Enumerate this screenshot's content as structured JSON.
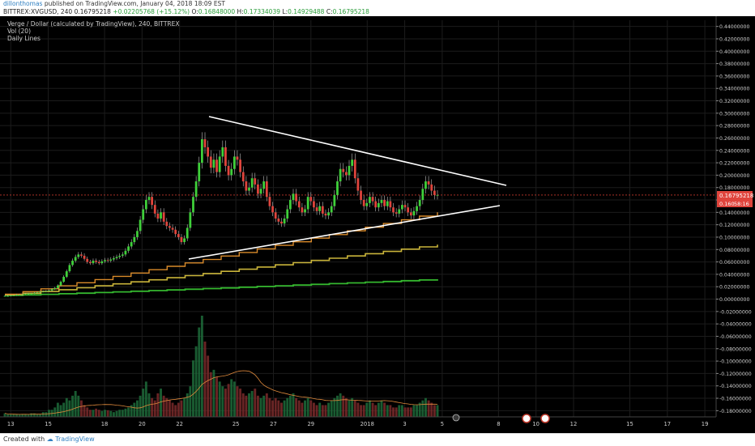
{
  "header": {
    "user": "dillonthomas",
    "published": "published on TradingView.com, January 04, 2018 18:09 EST",
    "symbol": "BITTREX:XVGUSD, 240",
    "last": "0.16795218",
    "change": "+0.02205768 (+15.12%)",
    "o_label": "O:",
    "o": "0.16848000",
    "h_label": "H:",
    "h": "0.17334039",
    "l_label": "L:",
    "l": "0.14929488",
    "c_label": "C:",
    "c": "0.16795218"
  },
  "legend": {
    "title": "Verge / Dollar (calculated by TradingView), 240, BITTREX",
    "vol": "Vol (20)",
    "daily": "Daily Lines"
  },
  "footer": {
    "created": "Created with",
    "brand": "TradingView"
  },
  "colors": {
    "up": "#3fd13a",
    "down": "#e0443c",
    "bg": "#000000",
    "grid": "#1c1c1c",
    "orange": "#d98a2a",
    "yellow": "#c9b43a",
    "green": "#35b82f",
    "trend": "#ffffff"
  },
  "chart_data": {
    "type": "candlestick",
    "y_ticks": [
      "0.44000000",
      "0.42000000",
      "0.40000000",
      "0.38000000",
      "0.36000000",
      "0.34000000",
      "0.32000000",
      "0.30000000",
      "0.28000000",
      "0.26000000",
      "0.24000000",
      "0.22000000",
      "0.20000000",
      "0.18000000",
      "0.16000000",
      "0.14000000",
      "0.12000000",
      "0.10000000",
      "0.08000000",
      "0.06000000",
      "0.04000000",
      "0.02000000",
      "0.00000000",
      "-0.02000000",
      "-0.04000000",
      "-0.06000000",
      "-0.08000000",
      "-0.10000000",
      "-0.12000000",
      "-0.14000000",
      "-0.16000000",
      "-0.18000000"
    ],
    "x_ticks": [
      "13",
      "15",
      "18",
      "20",
      "22",
      "25",
      "27",
      "29",
      "2018",
      "3",
      "5",
      "8",
      "10",
      "12",
      "15",
      "17",
      "19"
    ],
    "price_label": "0.16795218",
    "price_label_2": "0.160",
    "countdown": "58:16",
    "ylim": [
      -0.19,
      0.45
    ],
    "closes": [
      0.005,
      0.005,
      0.006,
      0.006,
      0.007,
      0.007,
      0.008,
      0.008,
      0.009,
      0.009,
      0.01,
      0.011,
      0.012,
      0.012,
      0.013,
      0.014,
      0.016,
      0.018,
      0.022,
      0.028,
      0.036,
      0.045,
      0.055,
      0.062,
      0.068,
      0.072,
      0.07,
      0.065,
      0.06,
      0.058,
      0.062,
      0.06,
      0.058,
      0.061,
      0.063,
      0.062,
      0.064,
      0.066,
      0.068,
      0.07,
      0.072,
      0.078,
      0.085,
      0.092,
      0.1,
      0.11,
      0.128,
      0.145,
      0.16,
      0.165,
      0.152,
      0.138,
      0.13,
      0.14,
      0.125,
      0.118,
      0.115,
      0.112,
      0.105,
      0.1,
      0.092,
      0.098,
      0.115,
      0.14,
      0.165,
      0.19,
      0.22,
      0.258,
      0.245,
      0.23,
      0.212,
      0.225,
      0.205,
      0.23,
      0.245,
      0.215,
      0.2,
      0.21,
      0.23,
      0.225,
      0.205,
      0.19,
      0.175,
      0.18,
      0.195,
      0.185,
      0.17,
      0.178,
      0.19,
      0.165,
      0.15,
      0.14,
      0.13,
      0.125,
      0.122,
      0.13,
      0.145,
      0.16,
      0.17,
      0.158,
      0.148,
      0.14,
      0.145,
      0.165,
      0.158,
      0.148,
      0.142,
      0.15,
      0.138,
      0.135,
      0.14,
      0.15,
      0.168,
      0.19,
      0.21,
      0.205,
      0.2,
      0.215,
      0.225,
      0.195,
      0.175,
      0.16,
      0.15,
      0.155,
      0.165,
      0.158,
      0.148,
      0.155,
      0.16,
      0.15,
      0.158,
      0.148,
      0.14,
      0.138,
      0.145,
      0.152,
      0.148,
      0.14,
      0.135,
      0.142,
      0.15,
      0.16,
      0.178,
      0.19,
      0.185,
      0.175,
      0.168,
      0.168
    ],
    "volumes": [
      0.15,
      0.1,
      0.1,
      0.1,
      0.1,
      0.1,
      0.12,
      0.1,
      0.1,
      0.15,
      0.15,
      0.1,
      0.1,
      0.2,
      0.2,
      0.3,
      0.3,
      0.4,
      0.6,
      0.5,
      0.6,
      0.8,
      0.7,
      0.9,
      1.1,
      0.9,
      0.7,
      0.5,
      0.4,
      0.3,
      0.3,
      0.35,
      0.3,
      0.25,
      0.3,
      0.28,
      0.25,
      0.2,
      0.25,
      0.3,
      0.3,
      0.35,
      0.4,
      0.5,
      0.6,
      0.7,
      0.9,
      1.2,
      1.5,
      1.0,
      0.8,
      0.7,
      1.0,
      1.2,
      0.9,
      0.8,
      0.7,
      0.6,
      0.5,
      0.6,
      0.7,
      0.8,
      1.0,
      1.3,
      2.4,
      3.0,
      3.8,
      4.3,
      3.2,
      2.6,
      1.9,
      2.0,
      1.7,
      1.5,
      1.3,
      1.2,
      1.4,
      1.6,
      1.5,
      1.3,
      1.2,
      1.0,
      0.9,
      1.0,
      1.1,
      1.2,
      0.9,
      0.8,
      0.9,
      1.0,
      0.8,
      0.7,
      0.8,
      0.7,
      0.6,
      0.7,
      0.8,
      0.9,
      1.0,
      0.8,
      0.7,
      0.6,
      0.7,
      0.8,
      0.7,
      0.6,
      0.5,
      0.6,
      0.5,
      0.5,
      0.6,
      0.7,
      0.8,
      0.9,
      1.0,
      0.9,
      0.8,
      0.7,
      0.8,
      0.7,
      0.6,
      0.5,
      0.5,
      0.6,
      0.7,
      0.6,
      0.5,
      0.6,
      0.7,
      0.6,
      0.5,
      0.5,
      0.4,
      0.4,
      0.5,
      0.5,
      0.4,
      0.4,
      0.4,
      0.5,
      0.5,
      0.6,
      0.7,
      0.8,
      0.7,
      0.6,
      0.5,
      0.5
    ]
  }
}
